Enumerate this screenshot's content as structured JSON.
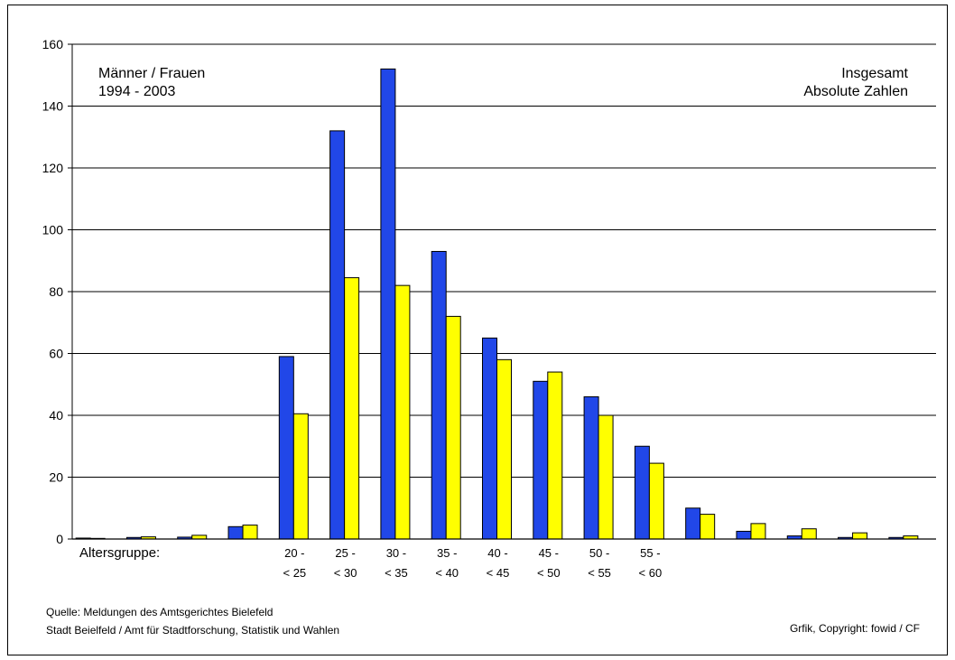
{
  "chart_data": {
    "type": "bar",
    "title": "",
    "ylim": [
      0,
      160
    ],
    "yticks": [
      0,
      20,
      40,
      60,
      80,
      100,
      120,
      140,
      160
    ],
    "grid": true,
    "categories": [
      "",
      "",
      "",
      "",
      "20 -\n< 25",
      "25 -\n< 30",
      "30 -\n< 35",
      "35 -\n< 40",
      "40 -\n< 45",
      "45 -\n< 50",
      "50 -\n< 55",
      "55 -\n< 60",
      "",
      "",
      "",
      "",
      ""
    ],
    "xlabel": "Altersgruppe:",
    "series": [
      {
        "color": "#2147e8",
        "values": [
          0.3,
          0.5,
          0.6,
          4,
          59,
          132,
          152,
          93,
          65,
          51,
          46,
          30,
          10,
          2.5,
          1,
          0.5,
          0.5
        ]
      },
      {
        "color": "#ffff00",
        "values": [
          0.2,
          0.7,
          1.2,
          4.5,
          40.5,
          84.5,
          82,
          72,
          58,
          54,
          40,
          24.5,
          8,
          5,
          3.3,
          2,
          1
        ]
      }
    ],
    "annotations": {
      "top_left": [
        "Männer / Frauen",
        "1994 - 2003"
      ],
      "top_right": [
        "Insgesamt",
        "Absolute Zahlen"
      ]
    }
  },
  "footer": {
    "source_line1": "Quelle: Meldungen des Amtsgerichtes Bielefeld",
    "source_line2": "Stadt Beielfeld / Amt für Stadtforschung, Statistik und Wahlen",
    "copyright": "Grfik, Copyright: fowid / CF"
  }
}
